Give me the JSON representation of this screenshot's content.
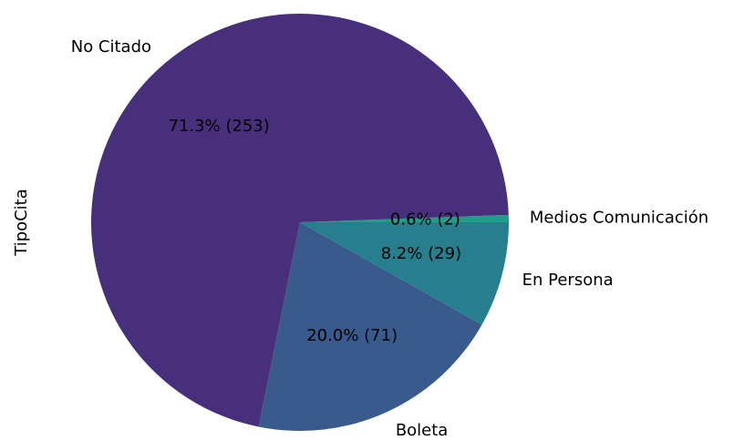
{
  "chart_data": {
    "type": "pie",
    "ylabel": "TipoCita",
    "categories": [
      "Medios Comunicación",
      "No Citado",
      "Boleta",
      "En Persona"
    ],
    "values": [
      2,
      253,
      71,
      29
    ],
    "value_labels": [
      "0.6% (2)",
      "71.3% (253)",
      "20.0% (71)",
      "8.2% (29)"
    ],
    "colors": [
      "#1f9e89",
      "#482f7b",
      "#385a8c",
      "#277f8e"
    ]
  }
}
